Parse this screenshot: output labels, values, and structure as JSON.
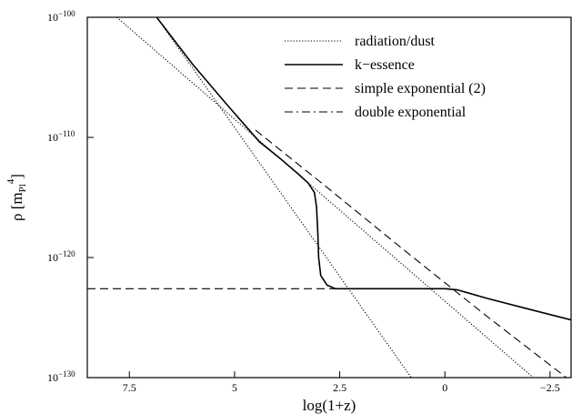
{
  "chart_data": {
    "type": "line",
    "xlabel": "log(1+z)",
    "ylabel": {
      "base": "ρ [m",
      "sub": "Pl",
      "sup": "4",
      "close": "]"
    },
    "x_axis_reversed": true,
    "xlim": [
      8.5,
      -3.0
    ],
    "y_scale": "log10",
    "ylim": [
      -130,
      -100
    ],
    "x_ticks": [
      {
        "value": 7.5,
        "label": "7.5"
      },
      {
        "value": 5,
        "label": "5"
      },
      {
        "value": 2.5,
        "label": "2.5"
      },
      {
        "value": 0,
        "label": "0"
      },
      {
        "value": -2.5,
        "label": "−2.5"
      }
    ],
    "y_ticks": [
      {
        "value": -100,
        "base": "10",
        "exp": "−100"
      },
      {
        "value": -110,
        "base": "10",
        "exp": "−110"
      },
      {
        "value": -120,
        "base": "10",
        "exp": "−120"
      },
      {
        "value": -130,
        "base": "10",
        "exp": "−130"
      }
    ],
    "legend_position": "top-right",
    "series": [
      {
        "name": "radiation/dust",
        "style": "dotted",
        "segments": [
          {
            "x": [
              7.8,
              -2.1
            ],
            "y": [
              -100.0,
              -130.0
            ]
          },
          {
            "x": [
              6.85,
              0.8
            ],
            "y": [
              -100.0,
              -130.0
            ]
          }
        ]
      },
      {
        "name": "k−essence",
        "style": "solid",
        "segments": [
          {
            "x": [
              6.85,
              6.0,
              5.2,
              4.4,
              3.9,
              3.5,
              3.25,
              3.1,
              3.05,
              3.02,
              3.0,
              2.95,
              2.8,
              2.6,
              2.5,
              2.0,
              1.0,
              0.0,
              -0.3,
              -1.0,
              -2.0,
              -3.0
            ],
            "y": [
              -100.0,
              -103.9,
              -107.2,
              -110.4,
              -111.8,
              -113.0,
              -113.8,
              -114.6,
              -115.8,
              -118.0,
              -120.0,
              -121.5,
              -122.3,
              -122.6,
              -122.6,
              -122.6,
              -122.6,
              -122.6,
              -122.7,
              -123.4,
              -124.3,
              -125.2
            ]
          }
        ]
      },
      {
        "name": "simple exponential (2)",
        "style": "dashed",
        "segments": [
          {
            "x": [
              8.5,
              -0.1
            ],
            "y": [
              -122.6,
              -122.6
            ]
          },
          {
            "x": [
              4.5,
              3.0,
              1.0,
              0.0,
              -1.0,
              -2.0,
              -3.0
            ],
            "y": [
              -109.4,
              -113.6,
              -119.3,
              -122.1,
              -124.9,
              -127.6,
              -130.3
            ]
          }
        ]
      },
      {
        "name": "double exponential",
        "style": "dashdot",
        "segments": []
      }
    ]
  }
}
